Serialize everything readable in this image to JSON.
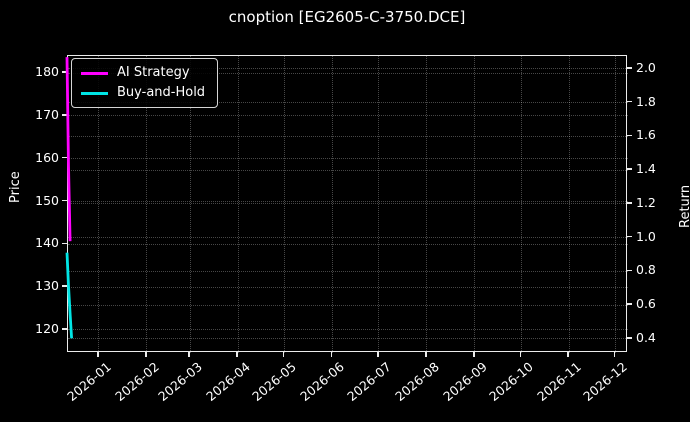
{
  "figure": {
    "title": "cnoption [EG2605-C-3750.DCE]",
    "background": "#000000",
    "text_color": "#ffffff",
    "spine_color": "#ebebeb"
  },
  "chart_data": {
    "type": "line",
    "title": "cnoption [EG2605-C-3750.DCE]",
    "xlabel": "",
    "ylabel_left": "Price",
    "ylabel_right": "Return",
    "grid": true,
    "legend": {
      "position": "upper-left",
      "entries": [
        {
          "label": "AI Strategy",
          "color": "#ff00ff"
        },
        {
          "label": "Buy-and-Hold",
          "color": "#00e5e5"
        }
      ]
    },
    "x_range": [
      "2025-12-12",
      "2026-12-09"
    ],
    "x_ticks": [
      {
        "label": "2026-01",
        "date": "2026-01-01"
      },
      {
        "label": "2026-02",
        "date": "2026-02-01"
      },
      {
        "label": "2026-03",
        "date": "2026-03-01"
      },
      {
        "label": "2026-04",
        "date": "2026-04-01"
      },
      {
        "label": "2026-05",
        "date": "2026-05-01"
      },
      {
        "label": "2026-06",
        "date": "2026-06-01"
      },
      {
        "label": "2026-07",
        "date": "2026-07-01"
      },
      {
        "label": "2026-08",
        "date": "2026-08-01"
      },
      {
        "label": "2026-09",
        "date": "2026-09-01"
      },
      {
        "label": "2026-10",
        "date": "2026-10-01"
      },
      {
        "label": "2026-11",
        "date": "2026-11-01"
      },
      {
        "label": "2026-12",
        "date": "2026-12-01"
      }
    ],
    "left_axis": {
      "label": "Price",
      "lim": [
        114.6,
        184.0
      ],
      "ticks": [
        {
          "label": "120",
          "value": 120
        },
        {
          "label": "130",
          "value": 130
        },
        {
          "label": "140",
          "value": 140
        },
        {
          "label": "150",
          "value": 150
        },
        {
          "label": "160",
          "value": 160
        },
        {
          "label": "170",
          "value": 170
        },
        {
          "label": "180",
          "value": 180
        }
      ]
    },
    "right_axis": {
      "label": "Return",
      "lim": [
        0.317,
        2.077
      ],
      "ticks": [
        {
          "label": "0.4",
          "value": 0.4
        },
        {
          "label": "0.6",
          "value": 0.6
        },
        {
          "label": "0.8",
          "value": 0.8
        },
        {
          "label": "1.0",
          "value": 1.0
        },
        {
          "label": "1.2",
          "value": 1.2
        },
        {
          "label": "1.4",
          "value": 1.4
        },
        {
          "label": "1.6",
          "value": 1.6
        },
        {
          "label": "1.8",
          "value": 1.8
        },
        {
          "label": "2.0",
          "value": 2.0
        }
      ]
    },
    "series": [
      {
        "name": "AI Strategy",
        "color": "#ff00ff",
        "axis": "left",
        "linewidth": 2.8,
        "points": [
          {
            "date": "2025-12-12",
            "value": 183.5
          },
          {
            "date": "2025-12-13",
            "value": 158.0
          },
          {
            "date": "2025-12-14",
            "value": 140.5
          }
        ]
      },
      {
        "name": "Buy-and-Hold",
        "color": "#00e5e5",
        "axis": "left",
        "linewidth": 2.8,
        "points": [
          {
            "date": "2025-12-12",
            "value": 137.8
          },
          {
            "date": "2025-12-13",
            "value": 130.0
          },
          {
            "date": "2025-12-14",
            "value": 123.5
          },
          {
            "date": "2025-12-15",
            "value": 117.8
          }
        ]
      }
    ]
  }
}
